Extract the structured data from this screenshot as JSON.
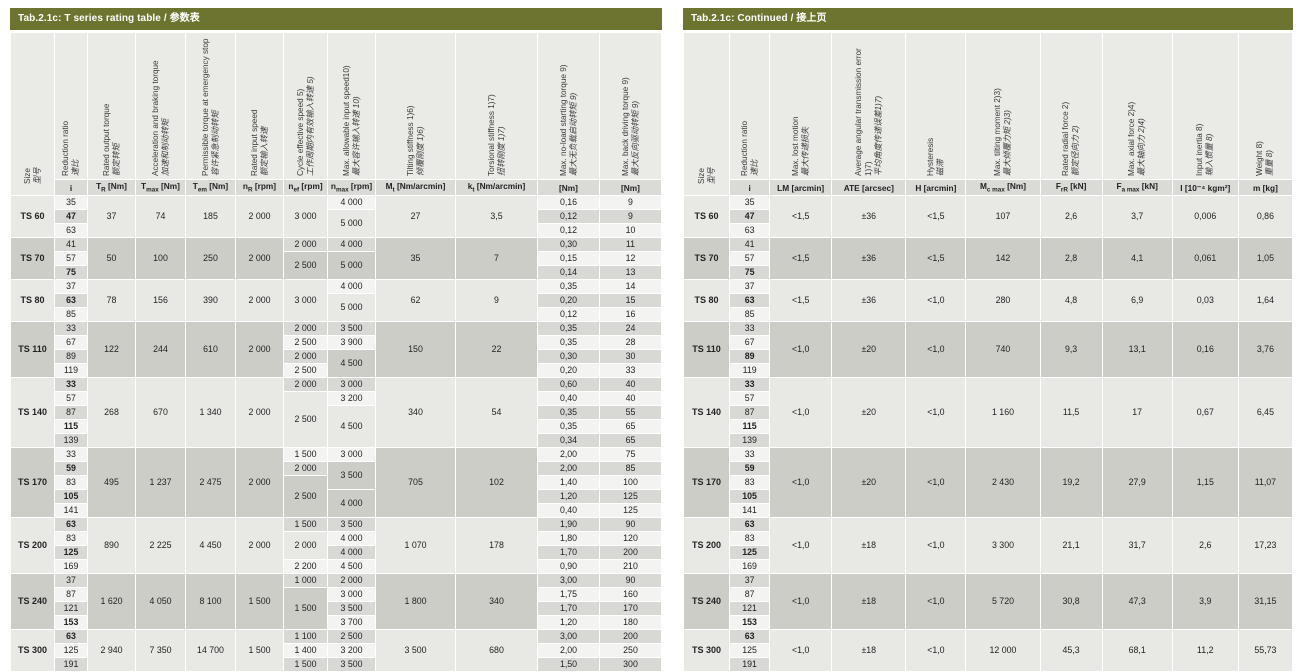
{
  "colors": {
    "title_bar_green": "#6d742f",
    "header_bg": "#eaeae7",
    "unit_row_bg": "#dadad6",
    "row_light": "#f3f3f1",
    "row_gray": "#d8d8d5",
    "group_light": "#e8e8e5",
    "group_dark": "#cdcdc8"
  },
  "left_table": {
    "title": "Tab.2.1c: T series rating table / 参数表",
    "size_header": {
      "en": "Size",
      "zh": "型号"
    },
    "headers": [
      {
        "en": "Reduction ratio",
        "zh": "速比"
      },
      {
        "en": "Rated output torque",
        "zh": "额定转矩"
      },
      {
        "en": "Acceleration and braking torque",
        "zh": "加速和制动转矩"
      },
      {
        "en": "Permissible torque at emergency stop",
        "zh": "容许紧急制动转矩"
      },
      {
        "en": "Rated input speed",
        "zh": "额定输入转速"
      },
      {
        "en": "Cycle effective speed 5)",
        "zh": "工作周期内有效输入转速 5)"
      },
      {
        "en": "Max. allowable input speed10)",
        "zh": "最大容许输入转速 10)"
      },
      {
        "en": "Tilting stiffness 1)6)",
        "zh": "倾覆刚度 1)6)"
      },
      {
        "en": "Torsional stiffness 1)7)",
        "zh": "扭转刚度 1)7)"
      },
      {
        "en": "Max. no-load starting torque 9)",
        "zh": "最大无负载启动转矩 9)"
      },
      {
        "en": "Max. back driving torque 9)",
        "zh": "最大反向驱动转矩 9)"
      }
    ],
    "units": [
      {
        "p": "i",
        "s": "",
        "r": ""
      },
      {
        "p": "T",
        "s": "R",
        "r": " [Nm]"
      },
      {
        "p": "T",
        "s": "max",
        "r": " [Nm]"
      },
      {
        "p": "T",
        "s": "em",
        "r": " [Nm]"
      },
      {
        "p": "n",
        "s": "R",
        "r": " [rpm]"
      },
      {
        "p": "n",
        "s": "ef",
        "r": " [rpm]"
      },
      {
        "p": "n",
        "s": "max",
        "r": " [rpm]"
      },
      {
        "p": "M",
        "s": "t",
        "r": " [Nm/arcmin]"
      },
      {
        "p": "k",
        "s": "t",
        "r": " [Nm/arcmin]"
      },
      {
        "p": "",
        "s": "",
        "r": "[Nm]"
      },
      {
        "p": "",
        "s": "",
        "r": "[Nm]"
      }
    ],
    "groups": [
      {
        "size": "TS 60",
        "ratios": [
          {
            "v": "35"
          },
          {
            "v": "47",
            "b": true
          },
          {
            "v": "63"
          }
        ],
        "t_r": "37",
        "t_max": "74",
        "t_em": "185",
        "n_r": "2 000",
        "n_ef": [
          {
            "v": "3 000",
            "span": 3
          }
        ],
        "n_max": [
          {
            "v": "4 000",
            "span": 1
          },
          {
            "v": "5 000",
            "span": 2
          }
        ],
        "m_t": "27",
        "k_t": "3,5",
        "no_load": [
          "0,16",
          "0,12",
          "0,12"
        ],
        "back_driving": [
          "9",
          "9",
          "10"
        ]
      },
      {
        "size": "TS 70",
        "ratios": [
          {
            "v": "41"
          },
          {
            "v": "57"
          },
          {
            "v": "75",
            "b": true
          }
        ],
        "t_r": "50",
        "t_max": "100",
        "t_em": "250",
        "n_r": "2 000",
        "n_ef": [
          {
            "v": "2 000",
            "span": 1
          },
          {
            "v": "2 500",
            "span": 2
          }
        ],
        "n_max": [
          {
            "v": "4 000",
            "span": 1
          },
          {
            "v": "5 000",
            "span": 2
          }
        ],
        "m_t": "35",
        "k_t": "7",
        "no_load": [
          "0,30",
          "0,15",
          "0,14"
        ],
        "back_driving": [
          "11",
          "12",
          "13"
        ]
      },
      {
        "size": "TS 80",
        "ratios": [
          {
            "v": "37"
          },
          {
            "v": "63",
            "b": true
          },
          {
            "v": "85"
          }
        ],
        "t_r": "78",
        "t_max": "156",
        "t_em": "390",
        "n_r": "2 000",
        "n_ef": [
          {
            "v": "3 000",
            "span": 3
          }
        ],
        "n_max": [
          {
            "v": "4 000",
            "span": 1
          },
          {
            "v": "5 000",
            "span": 2
          }
        ],
        "m_t": "62",
        "k_t": "9",
        "no_load": [
          "0,35",
          "0,20",
          "0,12"
        ],
        "back_driving": [
          "14",
          "15",
          "16"
        ]
      },
      {
        "size": "TS 110",
        "ratios": [
          {
            "v": "33"
          },
          {
            "v": "67"
          },
          {
            "v": "89"
          },
          {
            "v": "119"
          }
        ],
        "t_r": "122",
        "t_max": "244",
        "t_em": "610",
        "n_r": "2 000",
        "n_ef": [
          {
            "v": "2 000",
            "span": 1
          },
          {
            "v": "2 500",
            "span": 1
          },
          {
            "v": "2 000",
            "span": 1
          },
          {
            "v": "2 500",
            "span": 1
          }
        ],
        "n_max": [
          {
            "v": "3 500",
            "span": 1
          },
          {
            "v": "3 900",
            "span": 1
          },
          {
            "v": "4 500",
            "span": 2
          }
        ],
        "m_t": "150",
        "k_t": "22",
        "no_load": [
          "0,35",
          "0,35",
          "0,30",
          "0,20"
        ],
        "back_driving": [
          "24",
          "28",
          "30",
          "33"
        ]
      },
      {
        "size": "TS 140",
        "ratios": [
          {
            "v": "33",
            "b": true
          },
          {
            "v": "57"
          },
          {
            "v": "87"
          },
          {
            "v": "115",
            "b": true
          },
          {
            "v": "139"
          }
        ],
        "t_r": "268",
        "t_max": "670",
        "t_em": "1 340",
        "n_r": "2 000",
        "n_ef": [
          {
            "v": "2 000",
            "span": 1
          },
          {
            "v": "2 500",
            "span": 4
          }
        ],
        "n_max": [
          {
            "v": "3 000",
            "span": 1
          },
          {
            "v": "3 200",
            "span": 1
          },
          {
            "v": "4 500",
            "span": 3
          }
        ],
        "m_t": "340",
        "k_t": "54",
        "no_load": [
          "0,60",
          "0,40",
          "0,35",
          "0,35",
          "0,34"
        ],
        "back_driving": [
          "40",
          "40",
          "55",
          "65",
          "65"
        ]
      },
      {
        "size": "TS 170",
        "ratios": [
          {
            "v": "33"
          },
          {
            "v": "59",
            "b": true
          },
          {
            "v": "83"
          },
          {
            "v": "105",
            "b": true
          },
          {
            "v": "141"
          }
        ],
        "t_r": "495",
        "t_max": "1 237",
        "t_em": "2 475",
        "n_r": "2 000",
        "n_ef": [
          {
            "v": "1 500",
            "span": 1
          },
          {
            "v": "2 000",
            "span": 1
          },
          {
            "v": "2 500",
            "span": 3
          }
        ],
        "n_max": [
          {
            "v": "3 000",
            "span": 1
          },
          {
            "v": "3 500",
            "span": 2
          },
          {
            "v": "4 000",
            "span": 2
          }
        ],
        "m_t": "705",
        "k_t": "102",
        "no_load": [
          "2,00",
          "2,00",
          "1,40",
          "1,20",
          "0,40"
        ],
        "back_driving": [
          "75",
          "85",
          "100",
          "125",
          "125"
        ]
      },
      {
        "size": "TS 200",
        "ratios": [
          {
            "v": "63",
            "b": true
          },
          {
            "v": "83"
          },
          {
            "v": "125",
            "b": true
          },
          {
            "v": "169"
          }
        ],
        "t_r": "890",
        "t_max": "2 225",
        "t_em": "4 450",
        "n_r": "2 000",
        "n_ef": [
          {
            "v": "1 500",
            "span": 1
          },
          {
            "v": "2 000",
            "span": 2
          },
          {
            "v": "2 200",
            "span": 1
          }
        ],
        "n_max": [
          {
            "v": "3 500",
            "span": 1
          },
          {
            "v": "4 000",
            "span": 1
          },
          {
            "v": "4 000",
            "span": 1
          },
          {
            "v": "4 500",
            "span": 1
          }
        ],
        "m_t": "1 070",
        "k_t": "178",
        "no_load": [
          "1,90",
          "1,80",
          "1,70",
          "0,90"
        ],
        "back_driving": [
          "90",
          "120",
          "200",
          "210"
        ]
      },
      {
        "size": "TS 240",
        "ratios": [
          {
            "v": "37"
          },
          {
            "v": "87"
          },
          {
            "v": "121"
          },
          {
            "v": "153",
            "b": true
          }
        ],
        "t_r": "1 620",
        "t_max": "4 050",
        "t_em": "8 100",
        "n_r": "1 500",
        "n_ef": [
          {
            "v": "1 000",
            "span": 1
          },
          {
            "v": "1 500",
            "span": 3
          }
        ],
        "n_max": [
          {
            "v": "2 000",
            "span": 1
          },
          {
            "v": "3 000",
            "span": 1
          },
          {
            "v": "3 500",
            "span": 1
          },
          {
            "v": "3 700",
            "span": 1
          }
        ],
        "m_t": "1 800",
        "k_t": "340",
        "no_load": [
          "3,00",
          "1,75",
          "1,70",
          "1,20"
        ],
        "back_driving": [
          "90",
          "160",
          "170",
          "180"
        ]
      },
      {
        "size": "TS 300",
        "ratios": [
          {
            "v": "63",
            "b": true
          },
          {
            "v": "125"
          },
          {
            "v": "191"
          }
        ],
        "t_r": "2 940",
        "t_max": "7 350",
        "t_em": "14 700",
        "n_r": "1 500",
        "n_ef": [
          {
            "v": "1 100",
            "span": 1
          },
          {
            "v": "1 400",
            "span": 1
          },
          {
            "v": "1 500",
            "span": 1
          }
        ],
        "n_max": [
          {
            "v": "2 500",
            "span": 1
          },
          {
            "v": "3 200",
            "span": 1
          },
          {
            "v": "3 500",
            "span": 1
          }
        ],
        "m_t": "3 500",
        "k_t": "680",
        "no_load": [
          "3,00",
          "2,00",
          "1,50"
        ],
        "back_driving": [
          "200",
          "250",
          "300"
        ]
      }
    ]
  },
  "right_table": {
    "title": "Tab.2.1c: Continued / 接上页",
    "size_header": {
      "en": "Size",
      "zh": "型号"
    },
    "headers": [
      {
        "en": "Reduction ratio",
        "zh": "速比"
      },
      {
        "en": "Max. lost motion",
        "zh": "最大传递损失"
      },
      {
        "en": "Average angular transmission error 1)7)",
        "zh": "平均角度传递误差1)7)"
      },
      {
        "en": "Hysteresis",
        "zh": "磁滞"
      },
      {
        "en": "Max. tilting moment 2)3)",
        "zh": "最大倾覆力矩 2)3)"
      },
      {
        "en": "Rated radial force 2)",
        "zh": "额定径向力 2)"
      },
      {
        "en": "Max. axial force 2)4)",
        "zh": "最大轴向力 2)4)"
      },
      {
        "en": "Input inertia 8)",
        "zh": "输入惯量 8)"
      },
      {
        "en": "Weight 8)",
        "zh": "重量 8)"
      }
    ],
    "units": [
      {
        "p": "i",
        "s": "",
        "r": ""
      },
      {
        "p": "LM",
        "s": "",
        "r": " [arcmin]"
      },
      {
        "p": "ATE",
        "s": "",
        "r": " [arcsec]"
      },
      {
        "p": "H",
        "s": "",
        "r": " [arcmin]"
      },
      {
        "p": "M",
        "s": "c max",
        "r": " [Nm]"
      },
      {
        "p": "F",
        "s": "rR",
        "r": " [kN]"
      },
      {
        "p": "F",
        "s": "a max",
        "r": " [kN]"
      },
      {
        "p": "I",
        "s": "",
        "r": " [10⁻⁴ kgm²]"
      },
      {
        "p": "m",
        "s": "",
        "r": " [kg]"
      }
    ],
    "groups": [
      {
        "size": "TS 60",
        "ratios": [
          {
            "v": "35"
          },
          {
            "v": "47",
            "b": true
          },
          {
            "v": "63"
          }
        ],
        "lm": "<1,5",
        "ate": "±36",
        "h": "<1,5",
        "mc_max": "107",
        "f_rr": "2,6",
        "f_a_max": "3,7",
        "inertia": "0,006",
        "mass": "0,86"
      },
      {
        "size": "TS 70",
        "ratios": [
          {
            "v": "41"
          },
          {
            "v": "57"
          },
          {
            "v": "75",
            "b": true
          }
        ],
        "lm": "<1,5",
        "ate": "±36",
        "h": "<1,5",
        "mc_max": "142",
        "f_rr": "2,8",
        "f_a_max": "4,1",
        "inertia": "0,061",
        "mass": "1,05"
      },
      {
        "size": "TS 80",
        "ratios": [
          {
            "v": "37"
          },
          {
            "v": "63",
            "b": true
          },
          {
            "v": "85"
          }
        ],
        "lm": "<1,5",
        "ate": "±36",
        "h": "<1,0",
        "mc_max": "280",
        "f_rr": "4,8",
        "f_a_max": "6,9",
        "inertia": "0,03",
        "mass": "1,64"
      },
      {
        "size": "TS 110",
        "ratios": [
          {
            "v": "33"
          },
          {
            "v": "67"
          },
          {
            "v": "89",
            "b": true
          },
          {
            "v": "119"
          }
        ],
        "lm": "<1,0",
        "ate": "±20",
        "h": "<1,0",
        "mc_max": "740",
        "f_rr": "9,3",
        "f_a_max": "13,1",
        "inertia": "0,16",
        "mass": "3,76"
      },
      {
        "size": "TS 140",
        "ratios": [
          {
            "v": "33",
            "b": true
          },
          {
            "v": "57"
          },
          {
            "v": "87"
          },
          {
            "v": "115",
            "b": true
          },
          {
            "v": "139"
          }
        ],
        "lm": "<1,0",
        "ate": "±20",
        "h": "<1,0",
        "mc_max": "1 160",
        "f_rr": "11,5",
        "f_a_max": "17",
        "inertia": "0,67",
        "mass": "6,45"
      },
      {
        "size": "TS 170",
        "ratios": [
          {
            "v": "33"
          },
          {
            "v": "59",
            "b": true
          },
          {
            "v": "83"
          },
          {
            "v": "105",
            "b": true
          },
          {
            "v": "141"
          }
        ],
        "lm": "<1,0",
        "ate": "±20",
        "h": "<1,0",
        "mc_max": "2 430",
        "f_rr": "19,2",
        "f_a_max": "27,9",
        "inertia": "1,15",
        "mass": "11,07"
      },
      {
        "size": "TS 200",
        "ratios": [
          {
            "v": "63",
            "b": true
          },
          {
            "v": "83"
          },
          {
            "v": "125",
            "b": true
          },
          {
            "v": "169"
          }
        ],
        "lm": "<1,0",
        "ate": "±18",
        "h": "<1,0",
        "mc_max": "3 300",
        "f_rr": "21,1",
        "f_a_max": "31,7",
        "inertia": "2,6",
        "mass": "17,23"
      },
      {
        "size": "TS 240",
        "ratios": [
          {
            "v": "37"
          },
          {
            "v": "87"
          },
          {
            "v": "121"
          },
          {
            "v": "153",
            "b": true
          }
        ],
        "lm": "<1,0",
        "ate": "±18",
        "h": "<1,0",
        "mc_max": "5 720",
        "f_rr": "30,8",
        "f_a_max": "47,3",
        "inertia": "3,9",
        "mass": "31,15"
      },
      {
        "size": "TS 300",
        "ratios": [
          {
            "v": "63",
            "b": true
          },
          {
            "v": "125"
          },
          {
            "v": "191"
          }
        ],
        "lm": "<1,0",
        "ate": "±18",
        "h": "<1,0",
        "mc_max": "12 000",
        "f_rr": "45,3",
        "f_a_max": "68,1",
        "inertia": "11,2",
        "mass": "55,73"
      }
    ]
  }
}
